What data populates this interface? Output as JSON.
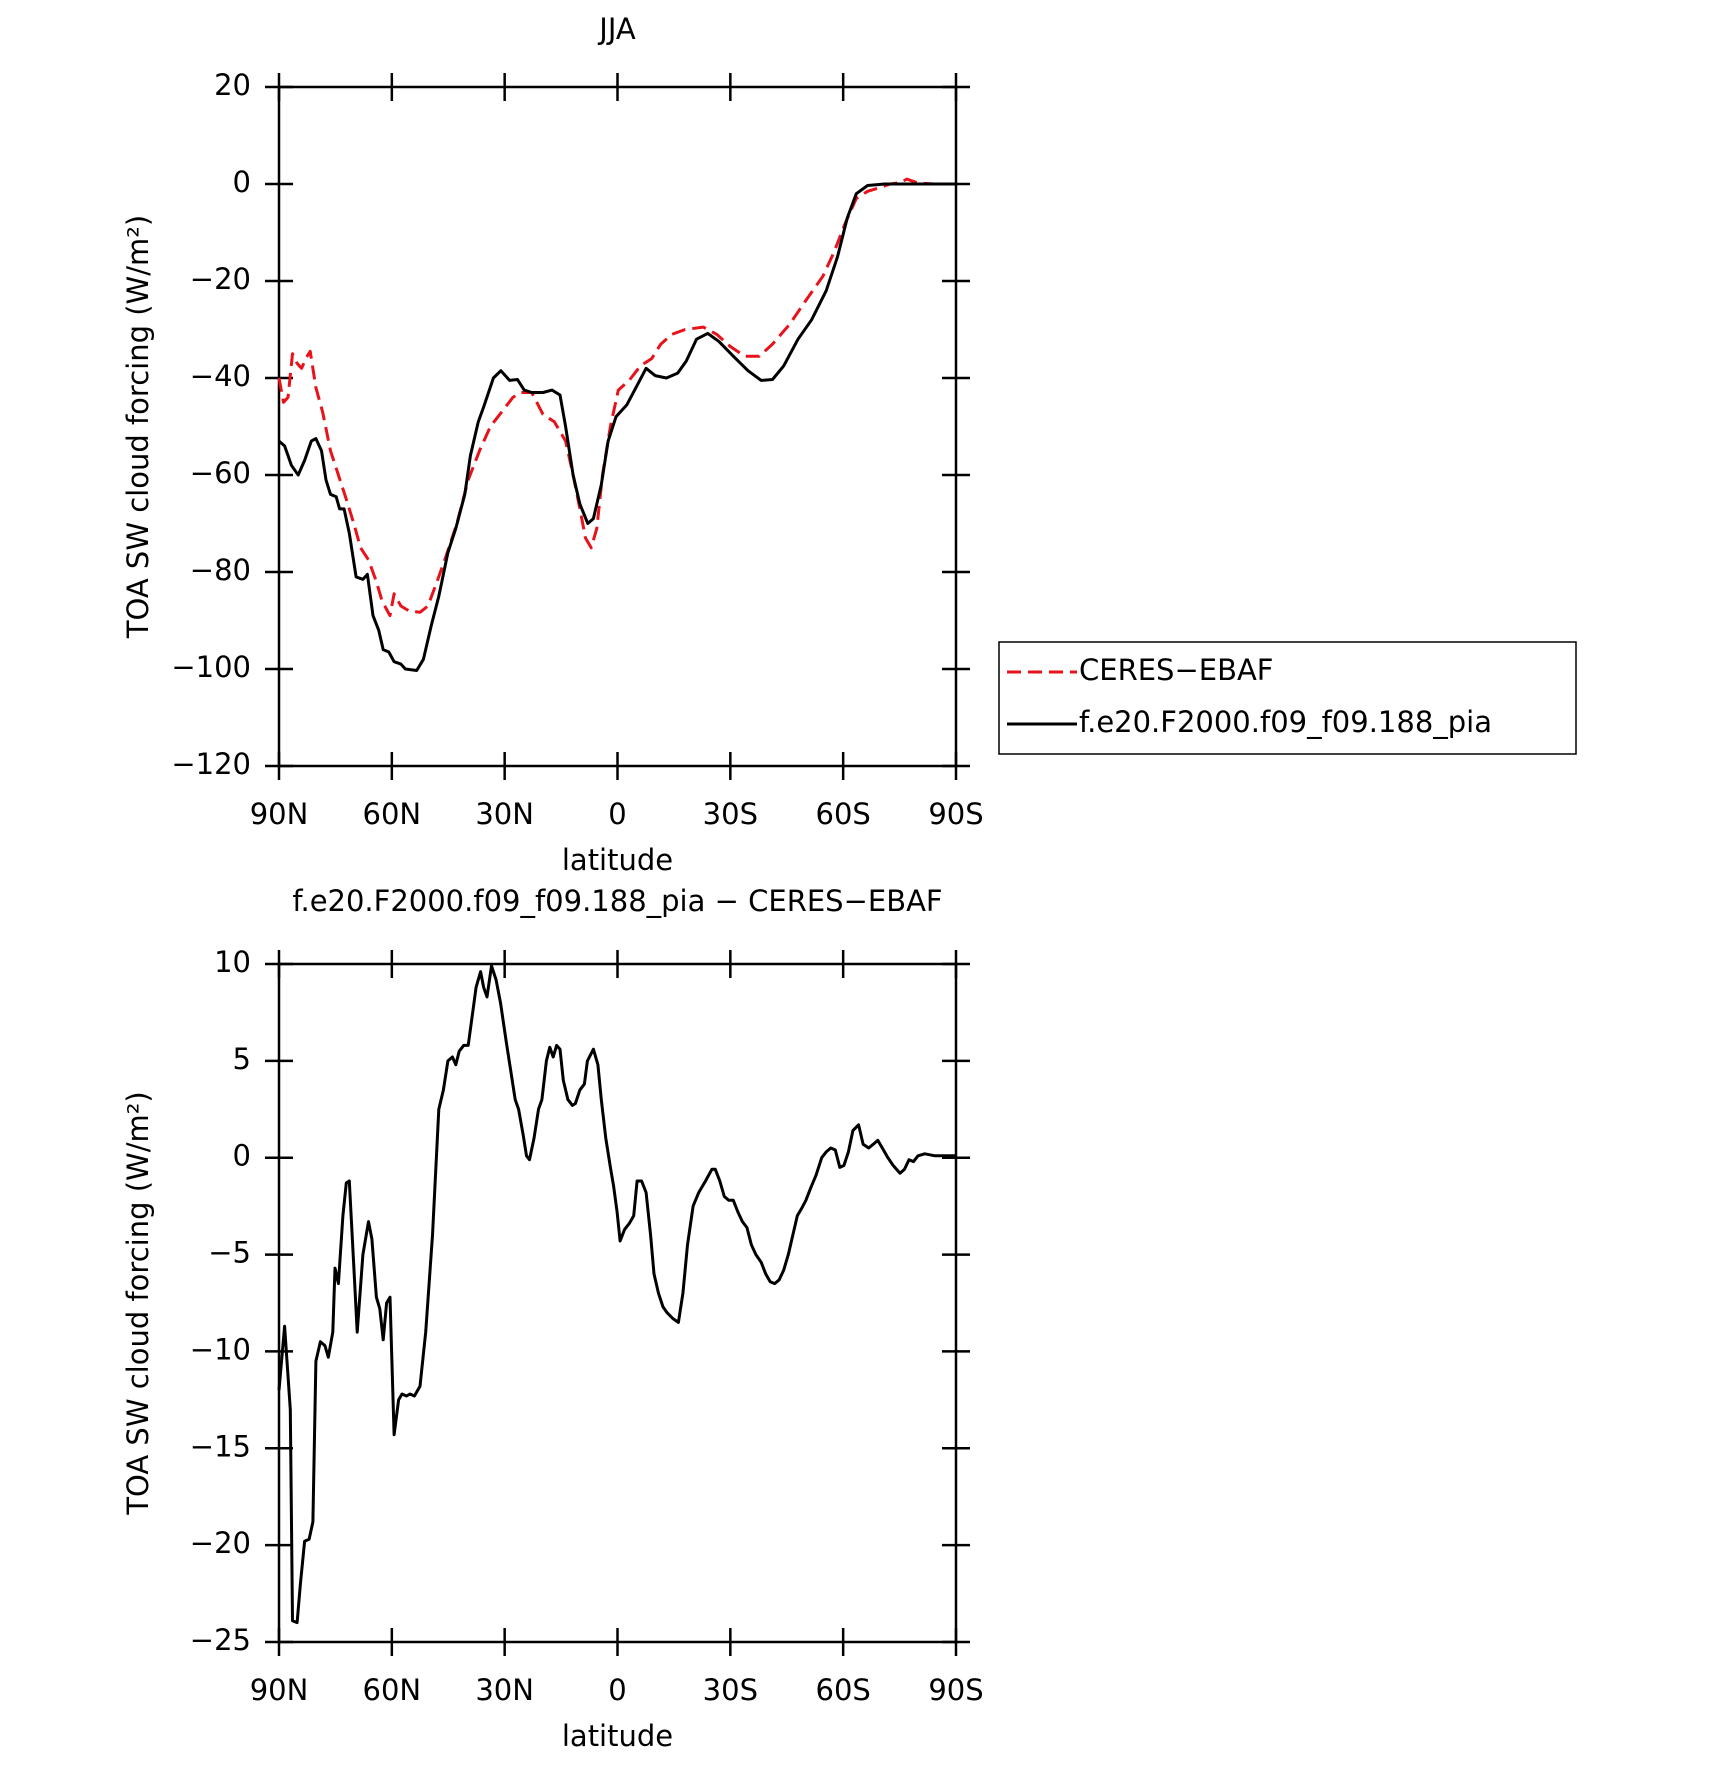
{
  "chart_data": [
    {
      "type": "line",
      "title": "JJA",
      "xlabel": "latitude",
      "ylabel": "TOA SW cloud forcing (W/m²)",
      "xlim": [
        90,
        -90
      ],
      "xticks": [
        {
          "value": 90,
          "label": "90N"
        },
        {
          "value": 60,
          "label": "60N"
        },
        {
          "value": 30,
          "label": "30N"
        },
        0,
        {
          "value": -30,
          "label": "30S"
        },
        {
          "value": -60,
          "label": "60S"
        },
        {
          "value": -90,
          "label": "90S"
        }
      ],
      "ylim": [
        -120,
        20
      ],
      "yticks": [
        {
          "value": -120,
          "label": "−120"
        },
        {
          "value": -100,
          "label": "−100"
        },
        {
          "value": -80,
          "label": "−80"
        },
        {
          "value": -60,
          "label": "−60"
        },
        {
          "value": -40,
          "label": "−40"
        },
        {
          "value": -20,
          "label": "−20"
        },
        0,
        20
      ],
      "legend": "outside-right",
      "grid": false,
      "series": [
        {
          "name": "CERES−EBAF",
          "color": "#e8131a",
          "style": "dashed",
          "x": [
            90,
            88.8,
            87.6,
            86.4,
            85.2,
            84,
            82.9,
            81.7,
            80.2,
            78.4,
            76.3,
            74.2,
            72.1,
            70.1,
            68.3,
            66.2,
            64.1,
            62.6,
            60.5,
            59.4,
            57.6,
            55.5,
            52.5,
            50.4,
            48,
            45.7,
            42.7,
            39.7,
            36.7,
            33.8,
            30.8,
            27.8,
            25.7,
            22.8,
            19.8,
            16.8,
            13.8,
            11.8,
            10,
            8.5,
            7,
            5.5,
            4,
            1.9,
            -0.2,
            -3.1,
            -6.1,
            -9.1,
            -11.5,
            -14.4,
            -18,
            -22.8,
            -26.4,
            -30,
            -33.8,
            -37.7,
            -41.2,
            -45.7,
            -50.1,
            -54.6,
            -57.6,
            -60.6,
            -63.5,
            -66.5,
            -69.5,
            -72.5,
            -75.4,
            -76.9,
            -79.9,
            -84.4,
            -90
          ],
          "values": [
            -40,
            -45,
            -44,
            -35,
            -37,
            -38,
            -36,
            -34.5,
            -42,
            -47,
            -55,
            -60,
            -65,
            -70,
            -75,
            -77.5,
            -82,
            -86,
            -89,
            -84.5,
            -87,
            -88,
            -88.3,
            -87,
            -82,
            -77,
            -70,
            -61,
            -55,
            -50,
            -47,
            -44,
            -43,
            -43,
            -47.5,
            -49,
            -53,
            -60,
            -67,
            -73,
            -75,
            -71,
            -60,
            -50,
            -42.5,
            -40.5,
            -37.5,
            -36,
            -33,
            -31,
            -30,
            -29.5,
            -31,
            -33.5,
            -35.5,
            -35.5,
            -33,
            -29,
            -24,
            -19,
            -14,
            -8,
            -3,
            -1.5,
            -0.8,
            0,
            0.3,
            1,
            0.2,
            0,
            0
          ]
        },
        {
          "name": "f.e20.F2000.f09_f09.188_pia",
          "color": "#000000",
          "style": "solid",
          "x": [
            90,
            88.5,
            86.7,
            84.9,
            83.2,
            81.4,
            80.2,
            78.7,
            77.5,
            76.3,
            74.8,
            73.9,
            72.7,
            71.3,
            69.5,
            67.7,
            66.5,
            65,
            63.5,
            62.3,
            60.8,
            59.4,
            57.6,
            56.4,
            53.4,
            51.6,
            49.5,
            47.5,
            45.1,
            43,
            40.6,
            39.1,
            37,
            35.6,
            33,
            31,
            28.7,
            26.6,
            24.8,
            22.8,
            19.8,
            17.4,
            15.3,
            13.8,
            11.8,
            10,
            7.9,
            6.4,
            4.3,
            2.5,
            0.4,
            -2.5,
            -4.9,
            -7.6,
            -10,
            -13,
            -16,
            -18.3,
            -21,
            -24,
            -27,
            -30.8,
            -34.7,
            -38.2,
            -41.2,
            -44.2,
            -48,
            -51.6,
            -55.5,
            -58.5,
            -61.1,
            -63.5,
            -66.5,
            -71,
            -90
          ],
          "values": [
            -53,
            -54,
            -58,
            -60,
            -57,
            -53,
            -52.5,
            -55,
            -61,
            -64,
            -64.5,
            -67,
            -67,
            -72,
            -81,
            -81.5,
            -80.5,
            -89,
            -92,
            -96,
            -96.5,
            -98.5,
            -99,
            -100,
            -100.3,
            -98,
            -91,
            -85,
            -76,
            -71,
            -64,
            -56,
            -49,
            -46,
            -40,
            -38.5,
            -40.5,
            -40.3,
            -42.5,
            -43,
            -43,
            -42.5,
            -43.5,
            -50,
            -60,
            -66,
            -70,
            -69,
            -62,
            -53,
            -48,
            -45.5,
            -42,
            -38,
            -39.5,
            -40,
            -39,
            -36.5,
            -32,
            -30.8,
            -32.5,
            -35.5,
            -38.5,
            -40.5,
            -40.3,
            -37.5,
            -32,
            -28,
            -22,
            -15,
            -7,
            -2,
            -0.3,
            0,
            0
          ]
        }
      ]
    },
    {
      "type": "line",
      "title": "f.e20.F2000.f09_f09.188_pia − CERES−EBAF",
      "xlabel": "latitude",
      "ylabel": "TOA SW cloud forcing (W/m²)",
      "xlim": [
        90,
        -90
      ],
      "xticks": [
        {
          "value": 90,
          "label": "90N"
        },
        {
          "value": 60,
          "label": "60N"
        },
        {
          "value": 30,
          "label": "30N"
        },
        0,
        {
          "value": -30,
          "label": "30S"
        },
        {
          "value": -60,
          "label": "60S"
        },
        {
          "value": -90,
          "label": "90S"
        }
      ],
      "ylim": [
        -25,
        10
      ],
      "yticks": [
        {
          "value": -25,
          "label": "−25"
        },
        {
          "value": -20,
          "label": "−20"
        },
        {
          "value": -15,
          "label": "−15"
        },
        {
          "value": -10,
          "label": "−10"
        },
        {
          "value": -5,
          "label": "−5"
        },
        0,
        5,
        10
      ],
      "grid": false,
      "series": [
        {
          "color": "#000000",
          "style": "solid",
          "x": [
            90,
            88.5,
            87,
            86.4,
            85.2,
            84.3,
            83.2,
            82,
            81,
            80.2,
            79,
            77.8,
            76.9,
            75.7,
            75.1,
            74.2,
            73,
            72.1,
            71.3,
            70,
            69.2,
            67.7,
            66.2,
            65.3,
            64.1,
            63.2,
            62.3,
            61.4,
            60.5,
            59.4,
            58.2,
            57.3,
            56.1,
            55.2,
            54,
            52.5,
            51,
            49.2,
            47.5,
            46.3,
            45.1,
            43.9,
            43,
            42.1,
            40.9,
            39.7,
            38.5,
            37.6,
            36.4,
            35.6,
            34.7,
            33.5,
            32.3,
            31.1,
            29.6,
            28.4,
            27.2,
            26.3,
            25.1,
            24.2,
            23.4,
            22.2,
            21,
            20.1,
            18.9,
            18,
            17.1,
            16.2,
            15.3,
            14.4,
            13.2,
            12,
            11.2,
            10,
            8.8,
            8,
            6.4,
            5.2,
            4.3,
            3.1,
            1.9,
            1,
            0.1,
            -0.7,
            -1.9,
            -3.1,
            -4.3,
            -5.2,
            -6.4,
            -7.6,
            -8.8,
            -9.7,
            -10.9,
            -12.1,
            -13.2,
            -14.7,
            -16.2,
            -17.4,
            -18.6,
            -20.1,
            -21.6,
            -23.4,
            -25.1,
            -26,
            -27.2,
            -28.4,
            -29.6,
            -30.8,
            -32,
            -33.2,
            -34.4,
            -35.6,
            -36.8,
            -38.2,
            -39.4,
            -40.6,
            -41.8,
            -43,
            -44.2,
            -45.4,
            -46.6,
            -47.8,
            -49,
            -50.1,
            -51.3,
            -52.8,
            -54.3,
            -55.5,
            -56.7,
            -57.9,
            -59.1,
            -60.2,
            -61.4,
            -62.6,
            -64.1,
            -65.3,
            -66.8,
            -68,
            -69.2,
            -70.4,
            -71.9,
            -73.3,
            -75.1,
            -76.3,
            -77.5,
            -78.7,
            -79.9,
            -81.7,
            -84.4,
            -90
          ],
          "values": [
            -12,
            -8.7,
            -13,
            -23.9,
            -24,
            -22,
            -19.8,
            -19.7,
            -18.8,
            -10.5,
            -9.5,
            -9.7,
            -10.3,
            -9,
            -5.7,
            -6.5,
            -3,
            -1.3,
            -1.2,
            -6,
            -9,
            -5,
            -3.3,
            -4.2,
            -7.2,
            -7.8,
            -9.4,
            -7.5,
            -7.2,
            -14.3,
            -12.5,
            -12.2,
            -12.3,
            -12.2,
            -12.3,
            -11.8,
            -9,
            -4,
            2.5,
            3.5,
            5,
            5.2,
            4.8,
            5.5,
            5.8,
            5.8,
            7.5,
            8.8,
            9.6,
            8.8,
            8.3,
            9.9,
            9.2,
            8,
            6,
            4.5,
            3,
            2.5,
            1.2,
            0.1,
            -0.1,
            1,
            2.5,
            3,
            5,
            5.7,
            5.2,
            5.8,
            5.6,
            4,
            3,
            2.7,
            2.8,
            3.5,
            3.8,
            5,
            5.6,
            4.8,
            3,
            1,
            -0.5,
            -1.5,
            -2.8,
            -4.3,
            -3.7,
            -3.4,
            -3,
            -1.2,
            -1.2,
            -1.8,
            -4,
            -6,
            -7,
            -7.7,
            -8,
            -8.3,
            -8.5,
            -7,
            -4.5,
            -2.5,
            -1.8,
            -1.2,
            -0.6,
            -0.6,
            -1.2,
            -2,
            -2.2,
            -2.2,
            -2.8,
            -3.3,
            -3.6,
            -4.5,
            -5,
            -5.4,
            -6,
            -6.4,
            -6.5,
            -6.3,
            -5.8,
            -5,
            -4,
            -3,
            -2.6,
            -2.2,
            -1.6,
            -0.9,
            0,
            0.3,
            0.5,
            0.4,
            -0.5,
            -0.4,
            0.3,
            1.4,
            1.7,
            0.7,
            0.5,
            0.7,
            0.9,
            0.5,
            0,
            -0.4,
            -0.8,
            -0.6,
            -0.1,
            -0.2,
            0.1,
            0.2,
            0.1,
            0.1
          ]
        }
      ]
    }
  ]
}
